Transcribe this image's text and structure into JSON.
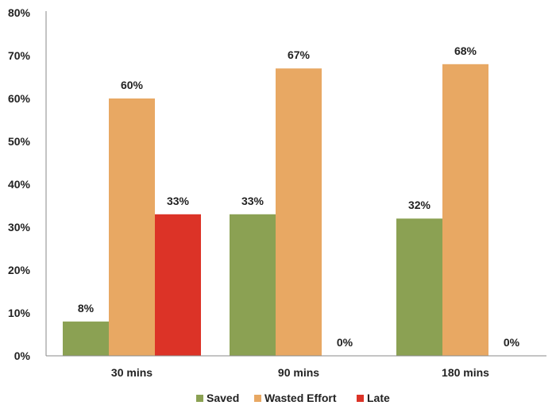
{
  "chart_data": {
    "type": "bar",
    "categories": [
      "30 mins",
      "90 mins",
      "180 mins"
    ],
    "series": [
      {
        "name": "Saved",
        "values": [
          8,
          33,
          32
        ],
        "labels": [
          "8%",
          "33%",
          "32%"
        ],
        "color": "#8BA153"
      },
      {
        "name": "Wasted Effort",
        "values": [
          60,
          67,
          68
        ],
        "labels": [
          "60%",
          "67%",
          "68%"
        ],
        "color": "#E8A863"
      },
      {
        "name": "Late",
        "values": [
          33,
          0,
          0
        ],
        "labels": [
          "33%",
          "0%",
          "0%"
        ],
        "color": "#DC3327"
      }
    ],
    "ylim": [
      0,
      80
    ],
    "yticks": [
      0,
      10,
      20,
      30,
      40,
      50,
      60,
      70,
      80
    ],
    "ytick_labels": [
      "0%",
      "10%",
      "20%",
      "30%",
      "40%",
      "50%",
      "60%",
      "70%",
      "80%"
    ],
    "title": "",
    "xlabel": "",
    "ylabel": "",
    "grid": false,
    "legend_position": "bottom"
  }
}
